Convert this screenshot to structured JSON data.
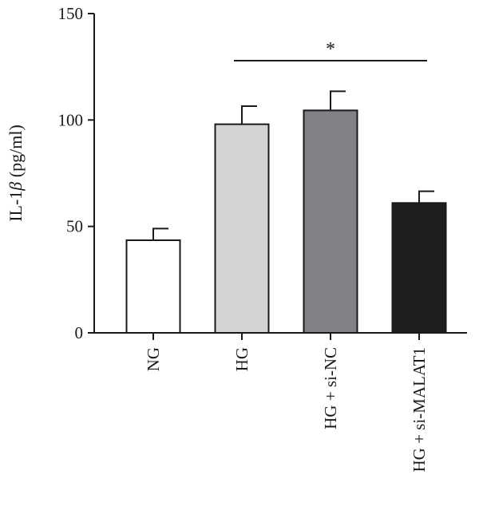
{
  "chart_data": {
    "type": "bar",
    "ylabel_main": "IL-1",
    "ylabel_beta": "β",
    "ylabel_unit": " (pg/ml)",
    "ylim": [
      0,
      150
    ],
    "yticks": [
      "0",
      "50",
      "100",
      "150"
    ],
    "categories": [
      "NG",
      "HG",
      "HG + si-NC",
      "HG + si-MALAT1"
    ],
    "values": [
      43.5,
      98,
      104.5,
      61
    ],
    "errors": [
      5.5,
      8.5,
      9,
      5.5
    ],
    "bar_colors": [
      "#ffffff",
      "#d3d4d6",
      "#808285",
      "#1e1e1e"
    ],
    "grid": false,
    "significance": {
      "label": "*",
      "from_category": 1,
      "to_category": 3
    }
  }
}
